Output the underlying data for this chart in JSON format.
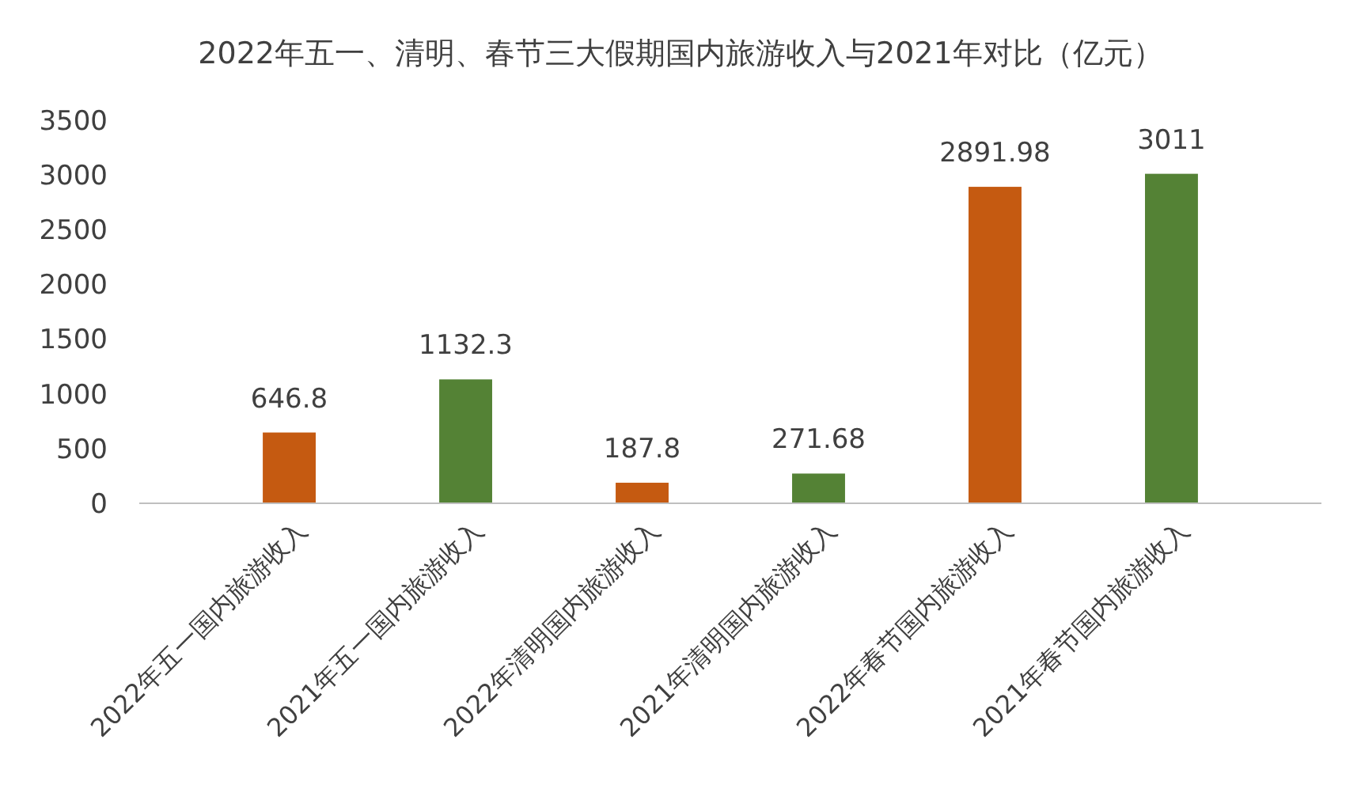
{
  "chart_data": {
    "type": "bar",
    "title": "2022年五一、清明、春节三大假期国内旅游收入与2021年对比（亿元）",
    "categories": [
      "2022年五一国内旅游收入",
      "2021年五一国内旅游收入",
      "2022年清明国内旅游收入",
      "2021年清明国内旅游收入",
      "2022年春节国内旅游收入",
      "2021年春节国内旅游收入"
    ],
    "values": [
      646.8,
      1132.3,
      187.8,
      271.68,
      2891.98,
      3011
    ],
    "colors": [
      "#c55a11",
      "#548235",
      "#c55a11",
      "#548235",
      "#c55a11",
      "#548235"
    ],
    "ylim": [
      0,
      3500
    ],
    "yticks": [
      0,
      500,
      1000,
      1500,
      2000,
      2500,
      3000,
      3500
    ],
    "grid": false,
    "data_labels": true
  }
}
